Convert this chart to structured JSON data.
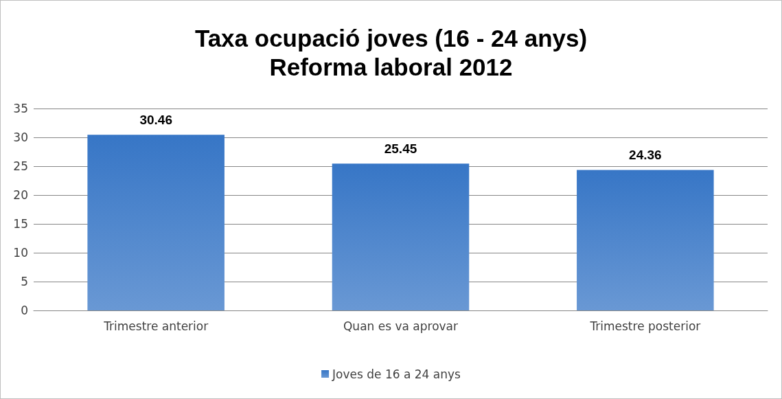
{
  "chart_data": {
    "type": "bar",
    "title": "Taxa ocupació joves (16 - 24 anys)\nReforma laboral 2012",
    "categories": [
      "Trimestre anterior",
      "Quan es va aprovar",
      "Trimestre posterior"
    ],
    "series": [
      {
        "name": "Joves de 16 a 24 anys",
        "color": "#3776c6",
        "values": [
          30.46,
          25.45,
          24.36
        ]
      }
    ],
    "ylim": [
      0,
      35
    ],
    "yticks": [
      0,
      5,
      10,
      15,
      20,
      25,
      30,
      35
    ],
    "grid": "y",
    "legend": "bottom",
    "data_labels": true
  }
}
